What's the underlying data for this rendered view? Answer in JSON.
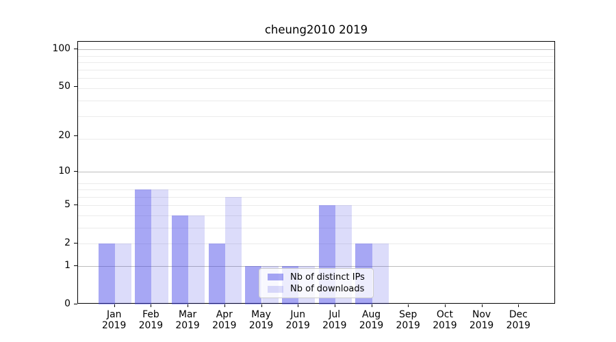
{
  "title": "cheung2010 2019",
  "colors": {
    "bar_ips": "rgba(60,60,230,0.45)",
    "bar_downloads": "rgba(60,60,230,0.18)",
    "grid_major": "#bcbcbc",
    "grid_minor": "#ebebeb",
    "axis": "#000000",
    "text": "#000000",
    "legend_bg": "rgba(255,255,255,0.8)",
    "legend_border": "#cccccc"
  },
  "chart_data": {
    "type": "bar",
    "title": "cheung2010 2019",
    "categories": [
      "Jan 2019",
      "Feb 2019",
      "Mar 2019",
      "Apr 2019",
      "May 2019",
      "Jun 2019",
      "Jul 2019",
      "Aug 2019",
      "Sep 2019",
      "Oct 2019",
      "Nov 2019",
      "Dec 2019"
    ],
    "series": [
      {
        "name": "Nb of distinct IPs",
        "color": "rgba(60,60,230,0.45)",
        "values": [
          2,
          7,
          4,
          2,
          1,
          1,
          5,
          2,
          0,
          0,
          0,
          0
        ]
      },
      {
        "name": "Nb of downloads",
        "color": "rgba(60,60,230,0.18)",
        "values": [
          2,
          7,
          4,
          6,
          1,
          1,
          5,
          2,
          0,
          0,
          0,
          0
        ]
      }
    ],
    "xlabel": "",
    "ylabel": "",
    "yscale": "log1p",
    "y_ticks": [
      0,
      1,
      2,
      5,
      10,
      20,
      50,
      100
    ],
    "ylim": [
      0,
      115
    ],
    "grid": "on",
    "grid_major_values": [
      1,
      10,
      100
    ],
    "grid_minor_values_1p": [
      3,
      4,
      5,
      6,
      7,
      8,
      9,
      20,
      30,
      40,
      50,
      60,
      70,
      80,
      90
    ],
    "legend_position": "lower center"
  }
}
